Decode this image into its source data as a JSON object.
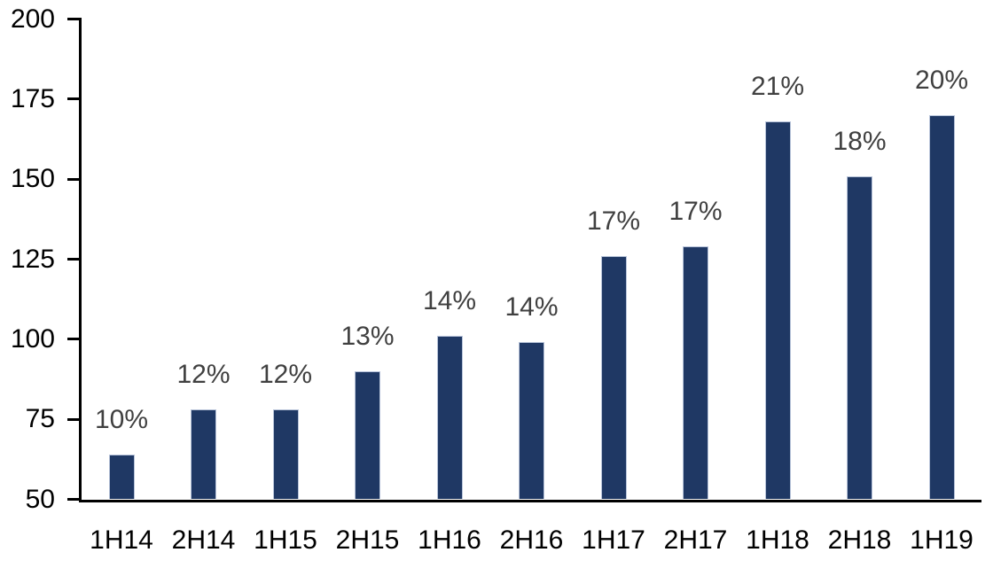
{
  "chart_data": {
    "type": "bar",
    "title": "",
    "xlabel": "",
    "ylabel": "",
    "categories": [
      "1H14",
      "2H14",
      "1H15",
      "2H15",
      "1H16",
      "2H16",
      "1H17",
      "2H17",
      "1H18",
      "2H18",
      "1H19"
    ],
    "values": [
      64,
      78,
      78,
      90,
      101,
      99,
      126,
      129,
      168,
      151,
      170
    ],
    "bar_labels": [
      "10%",
      "12%",
      "12%",
      "13%",
      "14%",
      "14%",
      "17%",
      "17%",
      "21%",
      "18%",
      "20%"
    ],
    "ylim": [
      50,
      200
    ],
    "yticks": [
      50,
      75,
      100,
      125,
      150,
      175,
      200
    ],
    "grid": false,
    "legend": false,
    "colors": {
      "bar_fill": "#1f3864",
      "bar_border": "#b7c3d9",
      "axis_line": "#000000",
      "axis_label": "#000000",
      "data_label": "#404040",
      "background": "#ffffff"
    }
  }
}
